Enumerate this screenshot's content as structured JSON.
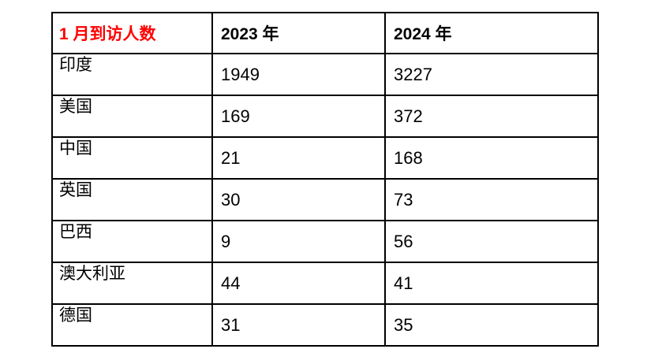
{
  "table": {
    "header": {
      "title": "1 月到访人数",
      "col2023": "2023 年",
      "col2024": "2024 年"
    },
    "rows": [
      {
        "country": "印度",
        "v2023": "1949",
        "v2024": "3227"
      },
      {
        "country": "美国",
        "v2023": "169",
        "v2024": "372"
      },
      {
        "country": "中国",
        "v2023": "21",
        "v2024": "168"
      },
      {
        "country": "英国",
        "v2023": "30",
        "v2024": "73"
      },
      {
        "country": "巴西",
        "v2023": "9",
        "v2024": "56"
      },
      {
        "country": "澳大利亚",
        "v2023": "44",
        "v2024": "41"
      },
      {
        "country": "德国",
        "v2023": "31",
        "v2024": "35"
      }
    ]
  },
  "colors": {
    "header_red": "#ff0000",
    "border": "#000000",
    "text": "#000000",
    "background": "#ffffff"
  },
  "chart_data": {
    "type": "table",
    "title": "1 月到访人数",
    "columns": [
      "1 月到访人数",
      "2023 年",
      "2024 年"
    ],
    "categories": [
      "印度",
      "美国",
      "中国",
      "英国",
      "巴西",
      "澳大利亚",
      "德国"
    ],
    "series": [
      {
        "name": "2023 年",
        "values": [
          1949,
          169,
          21,
          30,
          9,
          44,
          31
        ]
      },
      {
        "name": "2024 年",
        "values": [
          3227,
          372,
          168,
          73,
          56,
          41,
          35
        ]
      }
    ]
  }
}
